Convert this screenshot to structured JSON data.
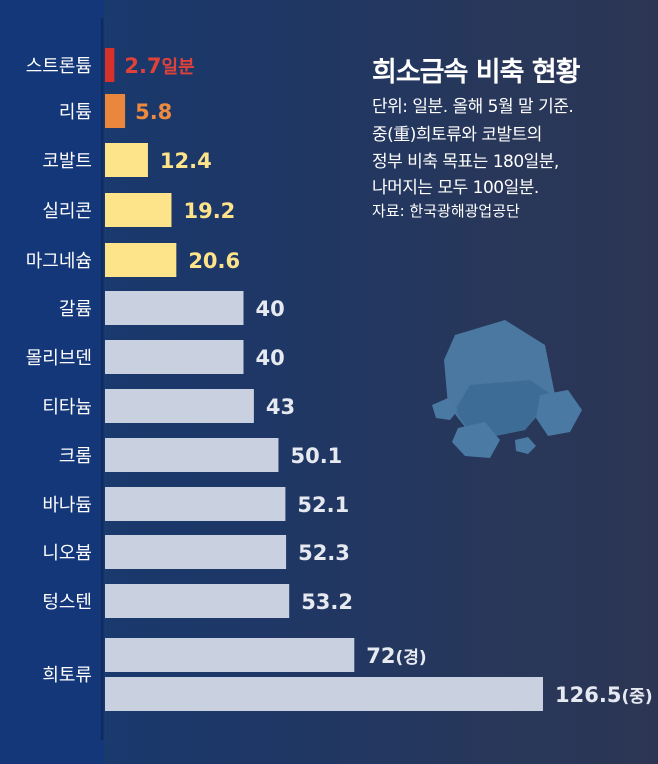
{
  "title": "희소금속 비축 현황",
  "notes": [
    "단위: 일분. 올해 5월 말 기준.",
    "중(重)희토류와 코발트의",
    "정부 비축 목표는 180일분,",
    "나머지는 모두 100일분."
  ],
  "source": "자료: 한국광해광업공단",
  "chart_data": {
    "type": "bar",
    "orientation": "horizontal",
    "title": "희소금속 비축 현황",
    "unit": "일분",
    "xlim": [
      0,
      130
    ],
    "bars": [
      {
        "label": "스트론튬",
        "value": 2.7,
        "value_label": "2.7",
        "suffix": "일분",
        "color": "#d8312b",
        "text_color": "#e0423a"
      },
      {
        "label": "리튬",
        "value": 5.8,
        "value_label": "5.8",
        "suffix": "",
        "color": "#ea873c",
        "text_color": "#ee8a3c"
      },
      {
        "label": "코발트",
        "value": 12.4,
        "value_label": "12.4",
        "suffix": "",
        "color": "#fde389",
        "text_color": "#fde389"
      },
      {
        "label": "실리콘",
        "value": 19.2,
        "value_label": "19.2",
        "suffix": "",
        "color": "#fde389",
        "text_color": "#fde389"
      },
      {
        "label": "마그네슘",
        "value": 20.6,
        "value_label": "20.6",
        "suffix": "",
        "color": "#fde389",
        "text_color": "#fde389"
      },
      {
        "label": "갈륨",
        "value": 40,
        "value_label": "40",
        "suffix": "",
        "color": "#c9d0e0",
        "text_color": "#e6e9f0"
      },
      {
        "label": "몰리브덴",
        "value": 40,
        "value_label": "40",
        "suffix": "",
        "color": "#c9d0e0",
        "text_color": "#e6e9f0"
      },
      {
        "label": "티타늄",
        "value": 43,
        "value_label": "43",
        "suffix": "",
        "color": "#c9d0e0",
        "text_color": "#e6e9f0"
      },
      {
        "label": "크롬",
        "value": 50.1,
        "value_label": "50.1",
        "suffix": "",
        "color": "#c9d0e0",
        "text_color": "#e6e9f0"
      },
      {
        "label": "바나듐",
        "value": 52.1,
        "value_label": "52.1",
        "suffix": "",
        "color": "#c9d0e0",
        "text_color": "#e6e9f0"
      },
      {
        "label": "니오븀",
        "value": 52.3,
        "value_label": "52.3",
        "suffix": "",
        "color": "#c9d0e0",
        "text_color": "#e6e9f0"
      },
      {
        "label": "텅스텐",
        "value": 53.2,
        "value_label": "53.2",
        "suffix": "",
        "color": "#c9d0e0",
        "text_color": "#e6e9f0"
      },
      {
        "label": "희토류",
        "value": 72,
        "value_label": "72",
        "suffix": "(경)",
        "color": "#c9d0e0",
        "text_color": "#e6e9f0"
      },
      {
        "label": "",
        "value": 126.5,
        "value_label": "126.5",
        "suffix": "(중)",
        "color": "#c9d0e0",
        "text_color": "#e6e9f0"
      }
    ]
  }
}
